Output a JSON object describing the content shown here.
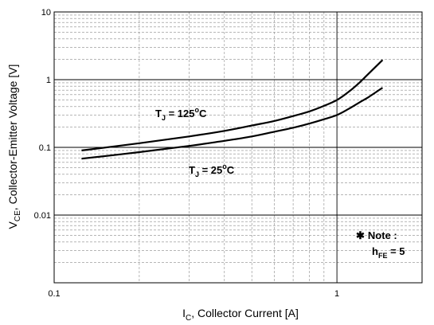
{
  "chart_data": {
    "type": "line",
    "title": "",
    "xscale": "log",
    "yscale": "log",
    "xlim": [
      0.1,
      2
    ],
    "ylim": [
      0.001,
      10
    ],
    "grid": true,
    "x_ticks": [
      {
        "value": 0.1,
        "label": "0.1"
      },
      {
        "value": 1,
        "label": "1"
      }
    ],
    "y_ticks": [
      {
        "value": 10,
        "label": "10"
      },
      {
        "value": 1,
        "label": "1"
      },
      {
        "value": 0.1,
        "label": "0.1"
      },
      {
        "value": 0.01,
        "label": "0.01"
      }
    ],
    "xlabel": {
      "main": "I",
      "sub": "C",
      "rest": ", Collector Current [A]"
    },
    "ylabel": {
      "main": "V",
      "sub": "CE",
      "rest": ", Collector-Emitter Voltage [V]"
    },
    "series": [
      {
        "name": "T_J = 125°C",
        "label": {
          "main": "T",
          "sub": "J",
          "rest": " = 125",
          "unit": "C"
        },
        "x": [
          0.125,
          0.2,
          0.3,
          0.4,
          0.5,
          0.6,
          0.7,
          0.8,
          0.9,
          1.0,
          1.1,
          1.2,
          1.3,
          1.45
        ],
        "y": [
          0.09,
          0.115,
          0.145,
          0.175,
          0.21,
          0.245,
          0.29,
          0.34,
          0.41,
          0.5,
          0.66,
          0.9,
          1.25,
          1.95
        ]
      },
      {
        "name": "T_J = 25°C",
        "label": {
          "main": "T",
          "sub": "J",
          "rest": " = 25",
          "unit": "C"
        },
        "x": [
          0.125,
          0.2,
          0.3,
          0.4,
          0.5,
          0.6,
          0.7,
          0.8,
          0.9,
          1.0,
          1.1,
          1.2,
          1.3,
          1.45
        ],
        "y": [
          0.068,
          0.085,
          0.105,
          0.125,
          0.145,
          0.17,
          0.195,
          0.225,
          0.26,
          0.3,
          0.37,
          0.46,
          0.56,
          0.76
        ]
      }
    ],
    "note": {
      "line1": "Note :",
      "symbol": "✱",
      "line2": {
        "main": "h",
        "sub": "FE",
        "rest": " = 5"
      }
    }
  }
}
